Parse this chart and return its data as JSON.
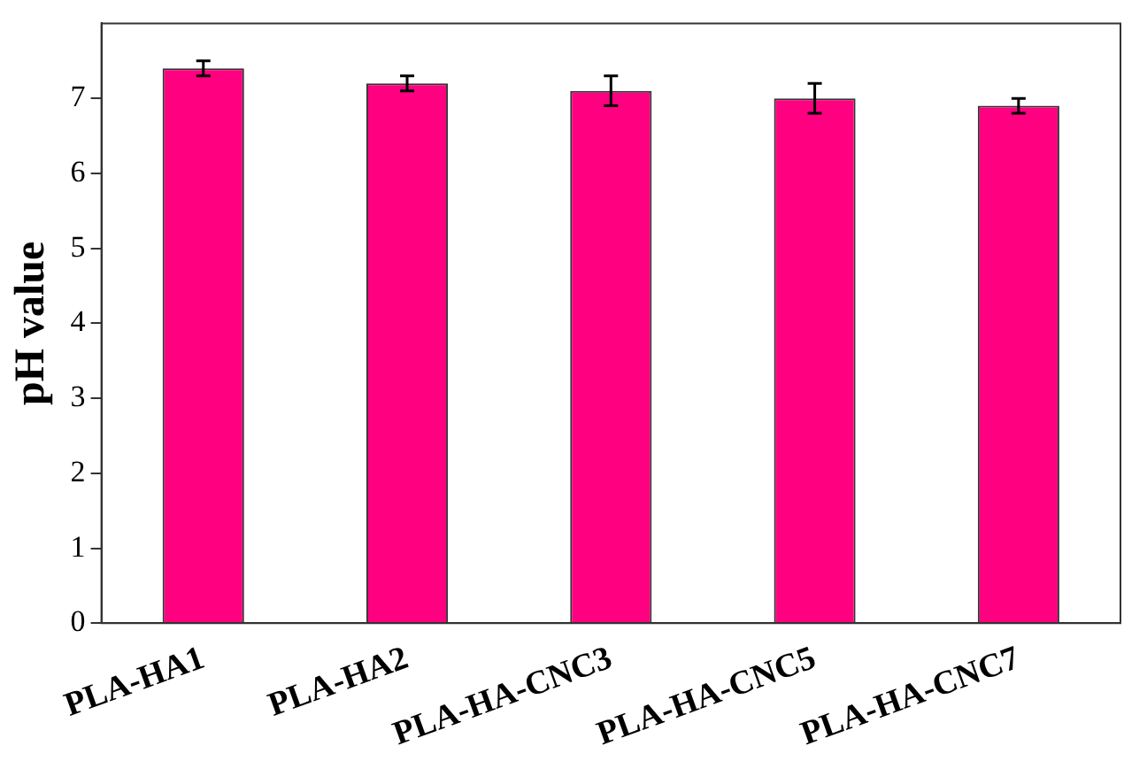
{
  "chart_data": {
    "type": "bar",
    "ylabel": "pH value",
    "categories": [
      "PLA-HA1",
      "PLA-HA2",
      "PLA-HA-CNC3",
      "PLA-HA-CNC5",
      "PLA-HA-CNC7"
    ],
    "values": [
      7.4,
      7.2,
      7.1,
      7.0,
      6.9
    ],
    "errors": [
      0.1,
      0.1,
      0.2,
      0.2,
      0.1
    ],
    "color": "#ff0080",
    "ylim": [
      0,
      8
    ],
    "yticks": [
      0,
      1,
      2,
      3,
      4,
      5,
      6,
      7
    ],
    "grid": false,
    "legend": false
  }
}
